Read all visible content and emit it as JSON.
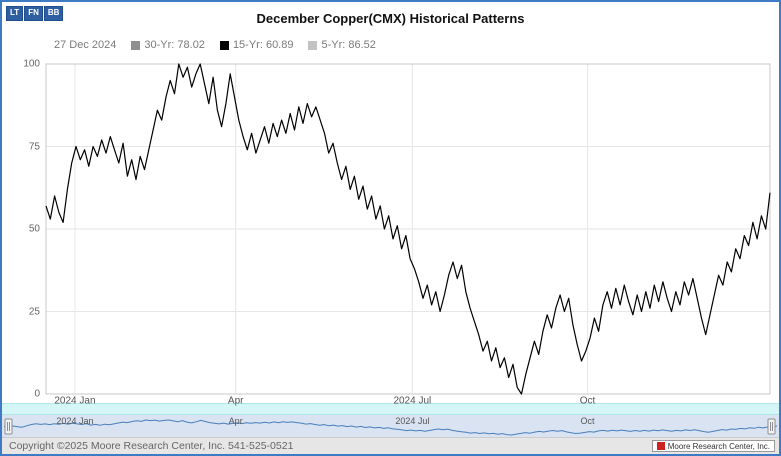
{
  "toolbar": {
    "buttons": [
      "LT",
      "FN",
      "BB"
    ]
  },
  "header": {
    "title": "December Copper(CMX) Historical Patterns"
  },
  "legend": {
    "date": "27 Dec 2024",
    "items": [
      {
        "label": "30-Yr: 78.02",
        "color": "#8f8f8f"
      },
      {
        "label": "15-Yr: 60.89",
        "color": "#000000"
      },
      {
        "label": "5-Yr: 86.52",
        "color": "#c3c3c3"
      }
    ]
  },
  "footer": {
    "copyright": "Copyright ©2025 Moore Research Center, Inc. 541-525-0521",
    "logo_text": "Moore Research Center, Inc."
  },
  "chart_data": {
    "type": "line",
    "title": "December Copper(CMX) Historical Patterns",
    "subtitle_date": "27 Dec 2024",
    "ylim": [
      0,
      100
    ],
    "yticks": [
      0,
      25,
      50,
      75,
      100
    ],
    "xticks": [
      {
        "label": "2024 Jan",
        "pos": 0.04
      },
      {
        "label": "Apr",
        "pos": 0.262
      },
      {
        "label": "2024 Jul",
        "pos": 0.506
      },
      {
        "label": "Oct",
        "pos": 0.748
      }
    ],
    "grid": true,
    "legend_position": "top",
    "legend_values": [
      {
        "name": "30-Yr",
        "value": 78.02
      },
      {
        "name": "15-Yr",
        "value": 60.89
      },
      {
        "name": "5-Yr",
        "value": 86.52
      }
    ],
    "series": [
      {
        "name": "15-Yr",
        "color": "#000000",
        "values": [
          57,
          53,
          60,
          55,
          52,
          62,
          70,
          75,
          71,
          74,
          69,
          75,
          72,
          77,
          73,
          78,
          74,
          70,
          76,
          66,
          71,
          65,
          72,
          68,
          74,
          80,
          86,
          83,
          90,
          95,
          91,
          100,
          96,
          99,
          93,
          97,
          100,
          94,
          88,
          96,
          86,
          81,
          88,
          97,
          90,
          83,
          78,
          74,
          79,
          73,
          77,
          81,
          76,
          82,
          78,
          83,
          79,
          85,
          80,
          87,
          82,
          88,
          84,
          87,
          83,
          79,
          73,
          76,
          70,
          65,
          69,
          62,
          66,
          59,
          63,
          56,
          60,
          53,
          57,
          50,
          54,
          47,
          51,
          44,
          48,
          41,
          38,
          34,
          29,
          33,
          27,
          31,
          25,
          30,
          36,
          40,
          35,
          39,
          31,
          26,
          22,
          18,
          13,
          16,
          10,
          14,
          8,
          11,
          5,
          9,
          2,
          0,
          6,
          11,
          16,
          12,
          19,
          24,
          20,
          26,
          30,
          25,
          29,
          21,
          15,
          10,
          13,
          17,
          23,
          19,
          27,
          31,
          26,
          32,
          27,
          33,
          28,
          24,
          30,
          25,
          31,
          26,
          33,
          28,
          34,
          29,
          25,
          31,
          27,
          34,
          30,
          35,
          29,
          23,
          18,
          24,
          30,
          36,
          33,
          40,
          37,
          44,
          41,
          48,
          45,
          52,
          47,
          54,
          50,
          61
        ]
      }
    ],
    "navigator": {
      "line_color": "#4a7ebb",
      "background": "#d9e3f1",
      "scrollbar_color": "#d4f6f6"
    }
  }
}
